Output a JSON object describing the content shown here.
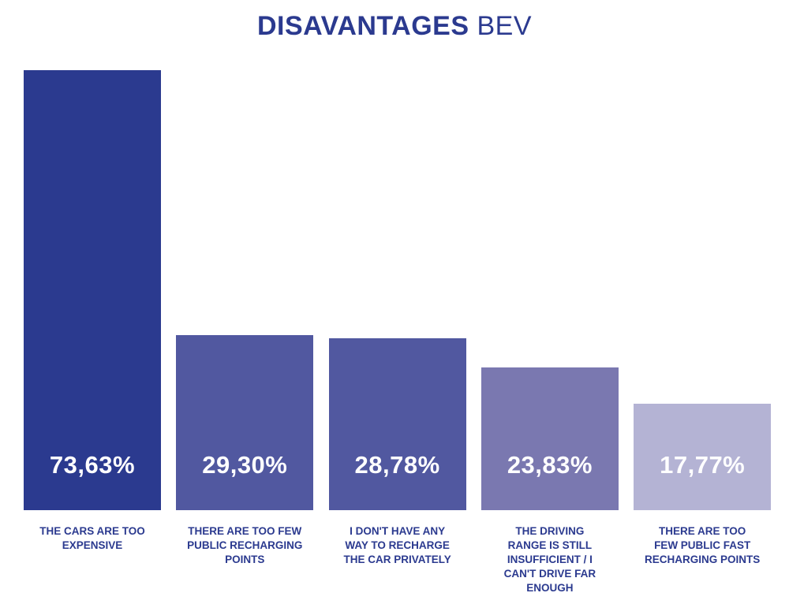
{
  "chart_data": {
    "type": "bar",
    "title_bold": "DISAVANTAGES",
    "title_normal": "BEV",
    "categories": [
      "THE CARS ARE TOO\nEXPENSIVE",
      "THERE ARE TOO FEW\nPUBLIC RECHARGING\nPOINTS",
      "I DON'T HAVE ANY\nWAY TO RECHARGE\nTHE CAR PRIVATELY",
      "THE DRIVING\nRANGE IS STILL\nINSUFFICIENT / I\nCAN'T DRIVE FAR\nENOUGH",
      "THERE ARE TOO\nFEW PUBLIC FAST\nRECHARGING POINTS"
    ],
    "values": [
      73.63,
      29.3,
      28.78,
      23.83,
      17.77
    ],
    "data_labels": [
      "73,63%",
      "29,30%",
      "28,78%",
      "23,83%",
      "17,77%"
    ],
    "colors": [
      "#2b3a8f",
      "#5158a0",
      "#5158a0",
      "#7a78b0",
      "#b4b3d4"
    ],
    "title_color": "#2b3a8f",
    "xlabel": "",
    "ylabel": "",
    "grid": false,
    "axes_visible": false
  }
}
